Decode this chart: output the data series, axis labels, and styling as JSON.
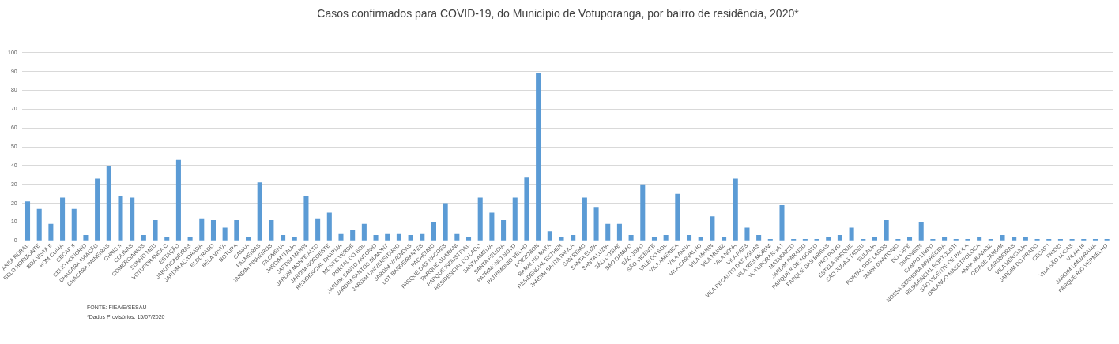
{
  "chart_data": {
    "type": "bar",
    "title": "Casos confirmados para COVID-19, do Município de Votuporanga, por bairro de residência, 2020*",
    "categories": [
      "AREA RURAL",
      "BELO HORIZONTE",
      "BOA VISTA II",
      "BOM CLIMA",
      "CECAP II",
      "CELIO HONORIO",
      "CHACARA AVIAÇÃO",
      "CHACARA PAINEIRAS",
      "CHRIS II",
      "COLINAS",
      "COMERCIARIOS",
      "SONHO MEU",
      "VOTUPORANGA C",
      "ESTAÇÃO",
      "JABUTICABEIRAS",
      "JARDIM ALVORADA",
      "ELDORADO",
      "BELA VISTA",
      "BOTURA",
      "CANAA",
      "PALMEIRAS",
      "JARDIM PINHEIROS",
      "FILOMENA",
      "JARDIM ITALIA",
      "JARDIM MARIN",
      "JARDIM MONTE ALTO",
      "JARDIM NOROESTE",
      "RESIDENCIAL DHARMA",
      "MONTE VERDE",
      "PORTAL DO SOL",
      "JARDIM SANTO ANTONIO",
      "JARDIM SANTOS DUMONT",
      "JARDIM UNIVERSITARIO",
      "JARDIM VIVENDAS",
      "LOT BANDEIRANTES",
      "PACAEMBU",
      "PARQUE DAS NACOES",
      "PARQUE GUARANI",
      "PARQUE INDUSTRIAL",
      "RESIDENCIAL DO LAGO",
      "SANTA AMELIA",
      "SANTA FELICIA",
      "PATRIMONIO NOVO",
      "PATRIMONIO VELHO",
      "POZZOBON",
      "RAMALHO MATA",
      "RESIDENCIAL ESTHER",
      "JARDIM SANTA PAULA",
      "SAN REMO",
      "SANTA ELIZA",
      "SANTA LUZIA",
      "SÃO COSME",
      "SÃO DAMIAO",
      "SÃO JOAO",
      "SÃO VICENTE",
      "VALE DO SOL",
      "VILA AMERICA",
      "VILA ANNA",
      "VILA CARVALHO",
      "VILA MARIN",
      "VILA MUNIZ",
      "VILA NOVA",
      "VILA PAES",
      "VILA RECANTO DAS AGUAS",
      "VILA RES MORINI",
      "VOTUPORANGA I",
      "MATARAZZO",
      "JARDIM PARAISO",
      "PARQUE 8 DE AGOSTO",
      "PARQUE DAS BRISAS",
      "PRO POVO",
      "ESTELA PARQUE",
      "SÃO JUDAS TADEU",
      "EULALIA",
      "PORTAL DOS LAGOS",
      "JAMIR D'ANTONIO",
      "DO CAFÉ",
      "SIMONSEN",
      "CAMPO LIMPO",
      "NOSSA SENHORA APARECIDA",
      "RESIDENCIAL BORTOLOTI",
      "SÃO VICENTE DE PAULA",
      "ORLANDO MASCTROLOCA",
      "ANNA MUNHOZ",
      "CIDADE JARDIM",
      "CAROBEIRAS",
      "VILA HERCULIA",
      "JARDIM DO PRADO",
      "CECAP I",
      "FRIOZI",
      "VILA SÃO LUCAS",
      "VILAR III",
      "JARDIM UMUARAMA",
      "PARQUE RIO VERMELHO"
    ],
    "values": [
      21,
      17,
      9,
      23,
      17,
      3,
      33,
      40,
      24,
      23,
      3,
      11,
      2,
      43,
      2,
      12,
      11,
      7,
      11,
      2,
      31,
      11,
      3,
      2,
      24,
      12,
      15,
      4,
      6,
      9,
      3,
      4,
      4,
      3,
      4,
      10,
      20,
      4,
      2,
      23,
      15,
      11,
      23,
      34,
      89,
      5,
      2,
      3,
      23,
      18,
      9,
      9,
      3,
      30,
      2,
      3,
      25,
      3,
      2,
      13,
      2,
      33,
      7,
      3,
      1,
      19,
      1,
      1,
      1,
      2,
      3,
      7,
      1,
      2,
      11,
      1,
      2,
      10,
      1,
      2,
      1,
      1,
      2,
      1,
      3,
      2,
      2,
      1,
      1,
      1,
      1,
      1,
      1,
      1
    ],
    "color": "#5b9bd5",
    "ylim": [
      0,
      100
    ],
    "yticks": [
      0,
      10,
      20,
      30,
      40,
      50,
      60,
      70,
      80,
      90,
      100
    ],
    "grid": "y",
    "annotations": [
      "FONTE: FIE/VE/SESAU",
      "*Dados Provisórios: 15/07/2020"
    ]
  }
}
